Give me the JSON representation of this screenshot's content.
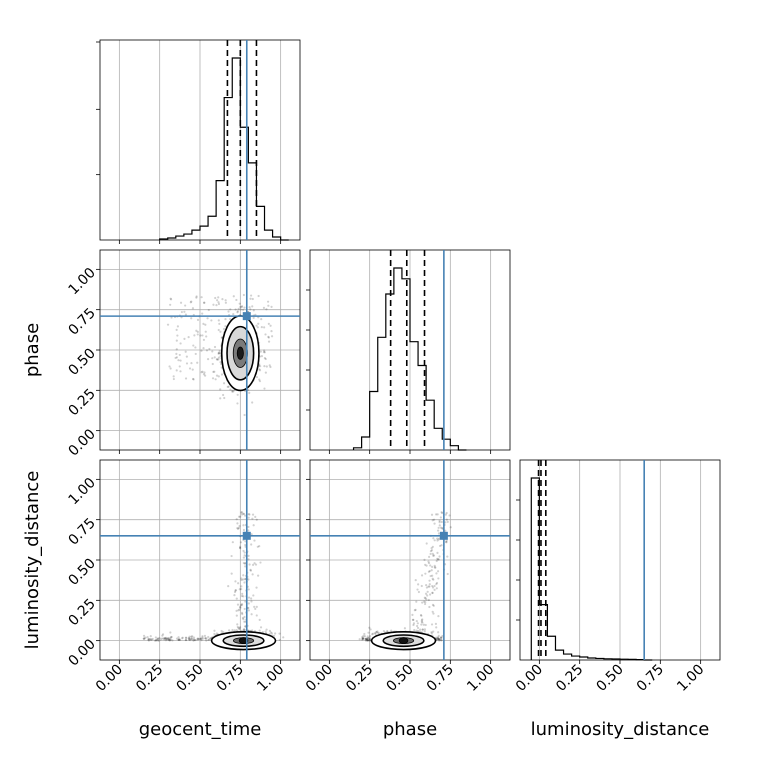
{
  "chart_data": {
    "type": "corner",
    "parameters": [
      "geocent_time",
      "phase",
      "luminosity_distance"
    ],
    "axis_labels": [
      "geocent_time",
      "phase",
      "luminosity_distance"
    ],
    "ticks": [
      0.0,
      0.25,
      0.5,
      0.75,
      1.0
    ],
    "tick_labels": [
      "0.00",
      "0.25",
      "0.50",
      "0.75",
      "1.00"
    ],
    "lim": [
      -0.12,
      1.12
    ],
    "grid": true,
    "truths": [
      0.79,
      0.71,
      0.65
    ],
    "truth_color": "#4682b4",
    "hist_color": "#000000",
    "quantiles": [
      [
        0.67,
        0.75,
        0.85
      ],
      [
        0.38,
        0.48,
        0.59
      ],
      [
        -0.005,
        0.01,
        0.04
      ]
    ],
    "histograms": [
      {
        "parameter": "geocent_time",
        "bin_edges": [
          0.25,
          0.3,
          0.35,
          0.4,
          0.45,
          0.5,
          0.55,
          0.6,
          0.65,
          0.7,
          0.75,
          0.8,
          0.85,
          0.9,
          0.95,
          1.0,
          1.05
        ],
        "counts": [
          0.005,
          0.01,
          0.02,
          0.03,
          0.05,
          0.07,
          0.12,
          0.3,
          0.72,
          0.92,
          0.57,
          0.39,
          0.17,
          0.05,
          0.015,
          0.0
        ]
      },
      {
        "parameter": "phase",
        "bin_edges": [
          0.15,
          0.2,
          0.25,
          0.3,
          0.35,
          0.4,
          0.45,
          0.5,
          0.55,
          0.6,
          0.65,
          0.7,
          0.75,
          0.8,
          0.85
        ],
        "counts": [
          0.01,
          0.06,
          0.27,
          0.52,
          0.72,
          0.84,
          0.79,
          0.5,
          0.39,
          0.23,
          0.1,
          0.05,
          0.02,
          0.0
        ]
      },
      {
        "parameter": "luminosity_distance",
        "bin_edges": [
          -0.05,
          0.0,
          0.05,
          0.1,
          0.15,
          0.2,
          0.25,
          0.3,
          0.35,
          0.4,
          0.45,
          0.5,
          0.55,
          0.6,
          0.65,
          0.7
        ],
        "counts": [
          0.92,
          0.28,
          0.12,
          0.05,
          0.03,
          0.02,
          0.015,
          0.01,
          0.008,
          0.006,
          0.005,
          0.004,
          0.003,
          0.002,
          0.0
        ]
      }
    ],
    "joint_panels": [
      {
        "x": "geocent_time",
        "y": "phase",
        "center": [
          0.75,
          0.48
        ],
        "spread": [
          0.055,
          0.11
        ],
        "truth": [
          0.79,
          0.71
        ]
      },
      {
        "x": "geocent_time",
        "y": "luminosity_distance",
        "center": [
          0.77,
          0.0
        ],
        "spread": [
          0.09,
          0.025
        ],
        "truth": [
          0.79,
          0.65
        ]
      },
      {
        "x": "phase",
        "y": "luminosity_distance",
        "center": [
          0.46,
          0.0
        ],
        "spread": [
          0.09,
          0.025
        ],
        "truth": [
          0.71,
          0.65
        ]
      }
    ]
  }
}
